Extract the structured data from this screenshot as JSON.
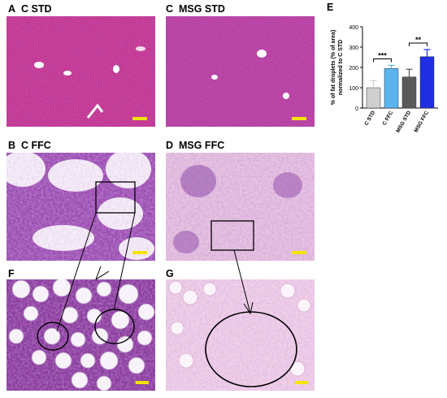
{
  "panels": [
    {
      "letter": "A",
      "title": "C STD"
    },
    {
      "letter": "C",
      "title": "MSG STD"
    },
    {
      "letter": "B",
      "title": "C FFC"
    },
    {
      "letter": "D",
      "title": "MSG FFC"
    },
    {
      "letter": "F",
      "title": ""
    },
    {
      "letter": "G",
      "title": ""
    }
  ],
  "chart_panel_letter": "E",
  "colors": {
    "he_pink": "#d0448f",
    "he_purple": "#9a4fb0",
    "lipid_white": "#ffffff",
    "scale_bar": "#f4e300"
  },
  "chart_data": {
    "type": "bar",
    "categories": [
      "C STD",
      "C FFC",
      "MSG STD",
      "MSG FFC"
    ],
    "values": [
      100,
      195,
      153,
      253
    ],
    "errors": [
      35,
      15,
      38,
      35
    ],
    "bar_colors": [
      "#cfcfcf",
      "#5ab4ee",
      "#5a5a5a",
      "#1f2ee0"
    ],
    "ylabel": "% of fat droplets (% of area)\nnormalized to C STD",
    "ylim": [
      0,
      400
    ],
    "yticks": [
      0,
      100,
      200,
      300,
      400
    ],
    "significance": [
      {
        "pair": [
          "C STD",
          "C FFC"
        ],
        "label": "***"
      },
      {
        "pair": [
          "MSG STD",
          "MSG FFC"
        ],
        "label": "**"
      }
    ],
    "grid": false
  }
}
